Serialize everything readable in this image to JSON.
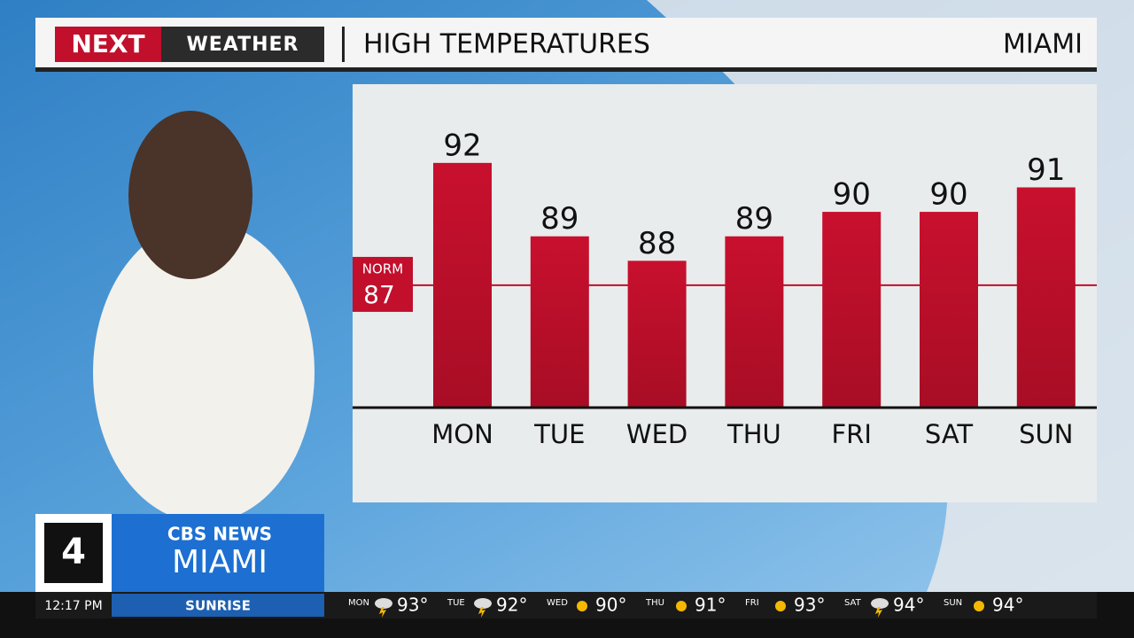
{
  "header": {
    "logo": "NEXT",
    "brand": "WEATHER",
    "title": "HIGH TEMPERATURES",
    "location": "MIAMI"
  },
  "chart_data": {
    "type": "bar",
    "categories": [
      "MON",
      "TUE",
      "WED",
      "THU",
      "FRI",
      "SAT",
      "SUN"
    ],
    "values": [
      92,
      89,
      88,
      89,
      90,
      90,
      91
    ],
    "color": "#c10f2c",
    "ylim": [
      82,
      95
    ],
    "reference_line": {
      "label": "NORM",
      "value": 87,
      "color": "#c10f2c"
    }
  },
  "station": {
    "channel": "4",
    "network": "CBS NEWS",
    "city": "MIAMI"
  },
  "footer": {
    "time": "12:17 PM",
    "segment": "SUNRISE",
    "ticker": [
      {
        "day": "MON",
        "temp": "93°",
        "icon": "storm"
      },
      {
        "day": "TUE",
        "temp": "92°",
        "icon": "storm"
      },
      {
        "day": "WED",
        "temp": "90°",
        "icon": "sun"
      },
      {
        "day": "THU",
        "temp": "91°",
        "icon": "sun"
      },
      {
        "day": "FRI",
        "temp": "93°",
        "icon": "sun"
      },
      {
        "day": "SAT",
        "temp": "94°",
        "icon": "storm"
      },
      {
        "day": "SUN",
        "temp": "94°",
        "icon": "sun"
      }
    ]
  }
}
